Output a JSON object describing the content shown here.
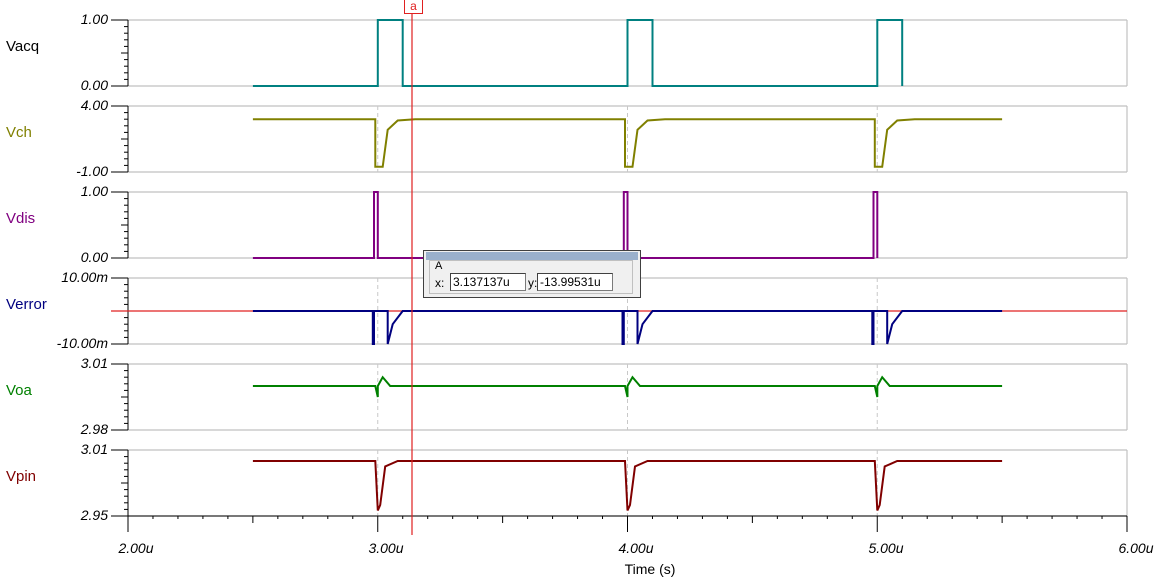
{
  "chart_data": {
    "type": "line",
    "title": "",
    "xlabel": "Time (s)",
    "xlim": [
      2e-06,
      6e-06
    ],
    "x_ticks": [
      "2.00u",
      "3.00u",
      "4.00u",
      "5.00u",
      "6.00u"
    ],
    "grid": false,
    "legend_position": "left (per-panel signal labels)",
    "panels": [
      {
        "name": "Vacq",
        "color": "#008080",
        "ylim": [
          0.0,
          1.0
        ],
        "y_ticks": [
          "1.00",
          "0.00"
        ],
        "description": "Pulse train: 0 baseline from 2.5u, high (1.0) for ~0.1u at 3.0u, 4.0u, 5.0u; ends 5.1u",
        "points": [
          [
            2.5,
            0
          ],
          [
            3.0,
            0
          ],
          [
            3.0,
            1
          ],
          [
            3.1,
            1
          ],
          [
            3.1,
            0
          ],
          [
            4.0,
            0
          ],
          [
            4.0,
            1
          ],
          [
            4.1,
            1
          ],
          [
            4.1,
            0
          ],
          [
            5.0,
            0
          ],
          [
            5.0,
            1
          ],
          [
            5.1,
            1
          ],
          [
            5.1,
            0
          ]
        ]
      },
      {
        "name": "Vch",
        "color": "#808000",
        "ylim": [
          -1.0,
          4.0
        ],
        "y_ticks": [
          "4.00",
          "-1.00"
        ],
        "description": "Steady ~3.0V, dips to ~-0.6V at each 1us edge then exponential recovery; 2.5u to 5.5u",
        "points": [
          [
            2.5,
            3.0
          ],
          [
            2.99,
            3.0
          ],
          [
            2.99,
            -0.6
          ],
          [
            3.02,
            -0.6
          ],
          [
            3.04,
            2.2
          ],
          [
            3.08,
            2.9
          ],
          [
            3.15,
            3.0
          ],
          [
            3.99,
            3.0
          ],
          [
            3.99,
            -0.6
          ],
          [
            4.02,
            -0.6
          ],
          [
            4.04,
            2.2
          ],
          [
            4.08,
            2.9
          ],
          [
            4.15,
            3.0
          ],
          [
            4.99,
            3.0
          ],
          [
            4.99,
            -0.6
          ],
          [
            5.02,
            -0.6
          ],
          [
            5.04,
            2.2
          ],
          [
            5.08,
            2.9
          ],
          [
            5.15,
            3.0
          ],
          [
            5.5,
            3.0
          ]
        ]
      },
      {
        "name": "Vdis",
        "color": "#800080",
        "ylim": [
          0.0,
          1.0
        ],
        "y_ticks": [
          "1.00",
          "0.00"
        ],
        "description": "0 baseline with narrow pulse to 1.0 (~20ns) just before 3u, 4u, 5u; 2.5u to 5.0u",
        "points": [
          [
            2.5,
            0
          ],
          [
            2.985,
            0
          ],
          [
            2.985,
            1
          ],
          [
            3.0,
            1
          ],
          [
            3.0,
            0
          ],
          [
            3.985,
            0
          ],
          [
            3.985,
            1
          ],
          [
            4.0,
            1
          ],
          [
            4.0,
            0
          ],
          [
            4.985,
            0
          ],
          [
            4.985,
            1
          ],
          [
            5.0,
            1
          ],
          [
            5.0,
            0
          ]
        ]
      },
      {
        "name": "Verror",
        "color": "#000080",
        "ylim": [
          -0.01,
          0.01
        ],
        "y_ticks": [
          "10.00m",
          "-10.00m"
        ],
        "description": "~0 baseline with negative spikes (clipped below -10m) near 3u, 4u, 5u; red zero-reference line spans full plot",
        "points": [
          [
            2.5,
            0
          ],
          [
            2.98,
            0
          ],
          [
            2.98,
            -0.01
          ],
          [
            2.985,
            -0.01
          ],
          [
            2.985,
            0
          ],
          [
            3.04,
            0
          ],
          [
            3.04,
            -0.01
          ],
          [
            3.06,
            -0.004
          ],
          [
            3.1,
            0
          ],
          [
            3.98,
            0
          ],
          [
            3.98,
            -0.01
          ],
          [
            3.985,
            -0.01
          ],
          [
            3.985,
            0
          ],
          [
            4.04,
            0
          ],
          [
            4.04,
            -0.01
          ],
          [
            4.06,
            -0.004
          ],
          [
            4.1,
            0
          ],
          [
            4.98,
            0
          ],
          [
            4.98,
            -0.01
          ],
          [
            4.985,
            -0.01
          ],
          [
            4.985,
            0
          ],
          [
            5.04,
            0
          ],
          [
            5.04,
            -0.01
          ],
          [
            5.06,
            -0.004
          ],
          [
            5.1,
            0
          ],
          [
            5.5,
            0
          ]
        ]
      },
      {
        "name": "Voa",
        "color": "#008000",
        "ylim": [
          2.98,
          3.01
        ],
        "y_ticks": [
          "3.01",
          "2.98"
        ],
        "description": "Steady ~3.0 with small dip/overshoot transients at 3u, 4u, 5u",
        "points": [
          [
            2.5,
            3.0
          ],
          [
            2.99,
            3.0
          ],
          [
            3.0,
            2.995
          ],
          [
            3.0,
            3.0
          ],
          [
            3.02,
            3.004
          ],
          [
            3.05,
            3.0
          ],
          [
            3.99,
            3.0
          ],
          [
            4.0,
            2.995
          ],
          [
            4.0,
            3.0
          ],
          [
            4.02,
            3.004
          ],
          [
            4.05,
            3.0
          ],
          [
            4.99,
            3.0
          ],
          [
            5.0,
            2.995
          ],
          [
            5.0,
            3.0
          ],
          [
            5.02,
            3.004
          ],
          [
            5.05,
            3.0
          ],
          [
            5.5,
            3.0
          ]
        ]
      },
      {
        "name": "Vpin",
        "color": "#800000",
        "ylim": [
          2.95,
          3.01
        ],
        "y_ticks": [
          "3.01",
          "2.95"
        ],
        "description": "Steady ~3.0 with negative dips to ~2.955 at 3u, 4u, 5u then recovery",
        "points": [
          [
            2.5,
            3.0
          ],
          [
            2.99,
            3.0
          ],
          [
            3.0,
            2.955
          ],
          [
            3.01,
            2.96
          ],
          [
            3.03,
            2.995
          ],
          [
            3.08,
            3.0
          ],
          [
            3.99,
            3.0
          ],
          [
            4.0,
            2.955
          ],
          [
            4.01,
            2.96
          ],
          [
            4.03,
            2.995
          ],
          [
            4.08,
            3.0
          ],
          [
            4.99,
            3.0
          ],
          [
            5.0,
            2.955
          ],
          [
            5.01,
            2.96
          ],
          [
            5.03,
            2.995
          ],
          [
            5.08,
            3.0
          ],
          [
            5.5,
            3.0
          ]
        ]
      }
    ],
    "cursor": {
      "label": "a",
      "x": "3.137137u",
      "y": "-13.99531u"
    }
  },
  "labels": {
    "signals": [
      "Vacq",
      "Vch",
      "Vdis",
      "Verror",
      "Voa",
      "Vpin"
    ],
    "y_ticks": [
      [
        "1.00",
        "0.00"
      ],
      [
        "4.00",
        "-1.00"
      ],
      [
        "1.00",
        "0.00"
      ],
      [
        "10.00m",
        "-10.00m"
      ],
      [
        "3.01",
        "2.98"
      ],
      [
        "3.01",
        "2.95"
      ]
    ],
    "x_ticks": [
      "2.00u",
      "3.00u",
      "4.00u",
      "5.00u",
      "6.00u"
    ],
    "x_axis_title": "Time (s)"
  },
  "cursor_box": {
    "group": "A",
    "x_label": "x:",
    "x_value": "3.137137u",
    "y_label": "y:",
    "y_value": "-13.99531u",
    "marker": "a"
  },
  "colors": {
    "Vacq": "#008080",
    "Vch": "#808000",
    "Vdis": "#800080",
    "Verror": "#000080",
    "Voa": "#008000",
    "Vpin": "#800000",
    "cursor": "#e02020",
    "grid": "#c0c0c0"
  }
}
